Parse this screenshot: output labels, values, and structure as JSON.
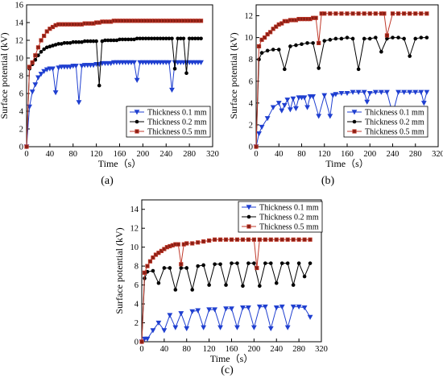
{
  "figure": {
    "panels": [
      "(a)",
      "(b)",
      "(c)"
    ]
  },
  "chart_data": [
    {
      "type": "line",
      "panel_label": "(a)",
      "xlabel": "Time（s）",
      "ylabel": "Surface potential (kV)",
      "xlim": [
        0,
        320
      ],
      "ylim": [
        0,
        16
      ],
      "xticks": [
        0,
        40,
        80,
        120,
        160,
        200,
        240,
        280,
        320
      ],
      "yticks": [
        0,
        2,
        4,
        6,
        8,
        10,
        12,
        14,
        16
      ],
      "legend_position": "bottom-right",
      "series": [
        {
          "name": "Thickness 0.1 mm",
          "color": "#1f3fd0",
          "marker": "triangle-down",
          "x": [
            0,
            5,
            10,
            15,
            20,
            25,
            30,
            35,
            40,
            45,
            50,
            55,
            60,
            65,
            70,
            75,
            80,
            85,
            90,
            95,
            100,
            105,
            110,
            115,
            120,
            125,
            130,
            135,
            140,
            145,
            150,
            155,
            160,
            165,
            170,
            175,
            180,
            185,
            190,
            195,
            200,
            205,
            210,
            215,
            220,
            225,
            230,
            235,
            240,
            245,
            250,
            255,
            260,
            265,
            270,
            275,
            280,
            285,
            290,
            295,
            300
          ],
          "values": [
            0,
            4.5,
            6.2,
            7.0,
            7.8,
            8.2,
            8.5,
            8.7,
            8.8,
            8.8,
            6.1,
            8.9,
            9.0,
            9.0,
            9.0,
            9.0,
            9.1,
            9.1,
            5.0,
            9.1,
            9.2,
            9.2,
            9.2,
            9.2,
            9.3,
            9.3,
            9.4,
            9.4,
            9.4,
            9.4,
            9.5,
            9.5,
            9.5,
            9.5,
            9.5,
            9.5,
            9.5,
            9.5,
            7.5,
            9.5,
            9.5,
            9.5,
            9.5,
            9.5,
            9.5,
            9.5,
            9.5,
            9.5,
            9.5,
            9.5,
            6.4,
            9.5,
            9.5,
            9.5,
            9.5,
            9.5,
            9.5,
            9.5,
            9.5,
            9.5,
            9.5
          ]
        },
        {
          "name": "Thickness 0.2 mm",
          "color": "#000000",
          "marker": "circle",
          "x": [
            0,
            5,
            10,
            15,
            20,
            25,
            30,
            35,
            40,
            45,
            50,
            55,
            60,
            65,
            70,
            75,
            80,
            85,
            90,
            95,
            100,
            105,
            110,
            115,
            120,
            125,
            130,
            135,
            140,
            145,
            150,
            155,
            160,
            165,
            170,
            175,
            180,
            185,
            190,
            195,
            200,
            205,
            210,
            215,
            220,
            225,
            230,
            235,
            240,
            245,
            250,
            255,
            260,
            265,
            270,
            275,
            280,
            285,
            290,
            295,
            300
          ],
          "values": [
            0,
            8.8,
            9.3,
            9.8,
            10.3,
            10.7,
            11.0,
            11.2,
            11.3,
            11.4,
            11.5,
            11.6,
            11.6,
            11.7,
            11.7,
            11.7,
            11.8,
            11.8,
            11.8,
            11.8,
            11.9,
            11.9,
            11.9,
            11.9,
            11.9,
            6.9,
            11.9,
            12.0,
            12.0,
            12.0,
            12.0,
            12.0,
            12.1,
            12.1,
            12.1,
            12.1,
            12.1,
            12.1,
            12.2,
            12.2,
            12.2,
            12.2,
            12.2,
            12.2,
            12.2,
            12.2,
            12.2,
            12.2,
            12.2,
            12.2,
            12.2,
            8.8,
            12.2,
            12.2,
            12.2,
            8.3,
            12.2,
            12.2,
            12.2,
            12.2,
            12.2
          ]
        },
        {
          "name": "Thickness 0.5 mm",
          "color": "#c0392b",
          "marker": "square",
          "x": [
            0,
            5,
            10,
            15,
            20,
            25,
            30,
            35,
            40,
            45,
            50,
            55,
            60,
            65,
            70,
            75,
            80,
            85,
            90,
            95,
            100,
            105,
            110,
            115,
            120,
            125,
            130,
            135,
            140,
            145,
            150,
            155,
            160,
            165,
            170,
            175,
            180,
            185,
            190,
            195,
            200,
            205,
            210,
            215,
            220,
            225,
            230,
            235,
            240,
            245,
            250,
            255,
            260,
            265,
            270,
            275,
            280,
            285,
            290,
            295,
            300
          ],
          "values": [
            0,
            9.0,
            9.5,
            10.3,
            11.2,
            12.0,
            12.5,
            13.0,
            13.3,
            13.5,
            13.7,
            13.8,
            13.8,
            13.8,
            13.8,
            13.8,
            13.8,
            13.8,
            13.8,
            13.8,
            13.9,
            13.9,
            13.9,
            13.9,
            14.0,
            14.0,
            14.1,
            14.1,
            14.1,
            14.1,
            14.2,
            14.2,
            14.2,
            14.2,
            14.2,
            14.2,
            14.2,
            14.2,
            14.2,
            14.2,
            14.2,
            14.2,
            14.2,
            14.2,
            14.2,
            14.2,
            14.2,
            14.2,
            14.2,
            14.2,
            14.2,
            14.2,
            14.2,
            14.2,
            14.2,
            14.2,
            14.2,
            14.2,
            14.2,
            14.2,
            14.2
          ]
        }
      ]
    },
    {
      "type": "line",
      "panel_label": "(b)",
      "xlabel": "Time（s）",
      "ylabel": "Surface potential (kV)",
      "xlim": [
        0,
        320
      ],
      "ylim": [
        0,
        13
      ],
      "xticks": [
        0,
        40,
        80,
        120,
        160,
        200,
        240,
        280,
        320
      ],
      "yticks": [
        0,
        2,
        4,
        6,
        8,
        10,
        12
      ],
      "legend_position": "bottom-right",
      "series": [
        {
          "name": "Thickness 0.1 mm",
          "color": "#1f3fd0",
          "marker": "triangle-down",
          "x": [
            0,
            5,
            10,
            20,
            30,
            40,
            45,
            50,
            55,
            60,
            65,
            70,
            75,
            80,
            85,
            90,
            95,
            100,
            110,
            120,
            130,
            135,
            140,
            150,
            160,
            170,
            180,
            190,
            195,
            200,
            210,
            220,
            230,
            240,
            250,
            260,
            270,
            280,
            290,
            295,
            300
          ],
          "values": [
            0,
            1.2,
            1.8,
            2.6,
            3.6,
            4.0,
            3.3,
            3.8,
            4.3,
            3.4,
            4.4,
            3.5,
            4.5,
            4.5,
            4.5,
            3.6,
            4.6,
            4.6,
            2.8,
            4.7,
            2.8,
            4.7,
            4.8,
            4.9,
            4.9,
            5.0,
            5.0,
            5.0,
            4.1,
            4.9,
            5.0,
            5.0,
            5.0,
            3.0,
            5.0,
            5.0,
            5.0,
            5.0,
            5.0,
            4.0,
            5.0
          ]
        },
        {
          "name": "Thickness 0.2 mm",
          "color": "#000000",
          "marker": "circle",
          "x": [
            0,
            5,
            10,
            20,
            30,
            40,
            50,
            60,
            70,
            80,
            90,
            100,
            110,
            120,
            130,
            140,
            150,
            160,
            170,
            180,
            190,
            200,
            210,
            220,
            230,
            240,
            250,
            260,
            270,
            280,
            290,
            300
          ],
          "values": [
            0,
            8.0,
            8.6,
            8.8,
            8.9,
            8.9,
            7.1,
            9.2,
            9.3,
            9.4,
            9.5,
            9.5,
            7.2,
            9.7,
            9.8,
            9.9,
            9.9,
            10.0,
            9.9,
            7.1,
            9.9,
            9.9,
            10.0,
            8.7,
            9.9,
            10.0,
            10.0,
            9.9,
            8.3,
            9.9,
            10.0,
            10.0
          ]
        },
        {
          "name": "Thickness 0.5 mm",
          "color": "#c0392b",
          "marker": "square",
          "x": [
            0,
            5,
            10,
            15,
            20,
            25,
            30,
            35,
            40,
            45,
            50,
            55,
            60,
            65,
            70,
            75,
            80,
            85,
            90,
            95,
            100,
            105,
            110,
            115,
            120,
            130,
            140,
            150,
            160,
            170,
            180,
            190,
            200,
            210,
            220,
            225,
            230,
            240,
            250,
            260,
            270,
            280,
            290,
            300
          ],
          "values": [
            0,
            9.2,
            9.8,
            10.0,
            10.3,
            10.5,
            10.8,
            11.0,
            11.2,
            11.3,
            11.5,
            11.5,
            11.6,
            11.6,
            11.6,
            11.7,
            11.7,
            11.7,
            11.7,
            11.7,
            11.8,
            11.8,
            9.5,
            12.2,
            12.2,
            12.2,
            12.2,
            12.2,
            12.2,
            12.2,
            12.2,
            12.2,
            12.2,
            12.2,
            12.2,
            12.2,
            10.2,
            12.2,
            12.2,
            12.2,
            12.2,
            12.2,
            12.2,
            12.2
          ]
        }
      ]
    },
    {
      "type": "line",
      "panel_label": "(c)",
      "xlabel": "Time（s）",
      "ylabel": "Surface potential (kV)",
      "xlim": [
        0,
        320
      ],
      "ylim": [
        0,
        15
      ],
      "xticks": [
        0,
        40,
        80,
        120,
        160,
        200,
        240,
        280,
        320
      ],
      "yticks": [
        0,
        2,
        4,
        6,
        8,
        10,
        12,
        14
      ],
      "legend_position": "top-right",
      "series": [
        {
          "name": "Thickness 0.1 mm",
          "color": "#1f3fd0",
          "marker": "triangle-down",
          "x": [
            0,
            5,
            10,
            20,
            30,
            40,
            50,
            60,
            70,
            80,
            90,
            100,
            110,
            120,
            130,
            140,
            150,
            160,
            170,
            180,
            190,
            200,
            210,
            220,
            230,
            240,
            250,
            260,
            270,
            280,
            290,
            300
          ],
          "values": [
            0,
            0.3,
            0.3,
            1.2,
            2.0,
            1.2,
            2.8,
            1.5,
            3.0,
            1.4,
            3.2,
            3.3,
            1.5,
            3.4,
            3.4,
            1.5,
            3.5,
            3.5,
            1.5,
            3.6,
            3.6,
            1.5,
            3.7,
            3.7,
            1.4,
            3.6,
            3.7,
            1.5,
            3.7,
            3.7,
            3.6,
            2.6
          ]
        },
        {
          "name": "Thickness 0.2 mm",
          "color": "#000000",
          "marker": "circle",
          "x": [
            0,
            5,
            10,
            20,
            30,
            40,
            50,
            60,
            70,
            80,
            90,
            100,
            110,
            120,
            130,
            140,
            150,
            160,
            170,
            180,
            190,
            200,
            210,
            220,
            230,
            240,
            250,
            260,
            270,
            280,
            290,
            300
          ],
          "values": [
            0,
            6.7,
            7.4,
            7.5,
            6.2,
            7.8,
            7.8,
            5.5,
            7.8,
            7.8,
            5.5,
            8.0,
            8.1,
            6.0,
            8.2,
            8.2,
            6.0,
            8.3,
            8.3,
            5.9,
            8.3,
            8.3,
            5.9,
            8.3,
            8.3,
            6.2,
            8.3,
            8.3,
            6.0,
            8.3,
            6.9,
            8.3
          ]
        },
        {
          "name": "Thickness 0.5 mm",
          "color": "#c0392b",
          "marker": "square",
          "x": [
            0,
            5,
            10,
            15,
            20,
            25,
            30,
            35,
            40,
            45,
            50,
            55,
            60,
            65,
            70,
            75,
            80,
            90,
            100,
            110,
            120,
            130,
            140,
            150,
            160,
            170,
            180,
            190,
            200,
            205,
            210,
            220,
            230,
            240,
            250,
            260,
            270,
            280,
            290,
            300
          ],
          "values": [
            0,
            7.3,
            8.0,
            8.5,
            8.9,
            9.2,
            9.4,
            9.6,
            9.8,
            10.0,
            10.1,
            10.2,
            10.3,
            10.3,
            8.2,
            10.3,
            10.4,
            10.4,
            10.5,
            10.6,
            10.7,
            10.8,
            10.8,
            10.8,
            10.8,
            10.8,
            10.8,
            10.8,
            10.8,
            7.8,
            10.8,
            10.8,
            10.8,
            10.8,
            10.8,
            10.8,
            10.8,
            10.8,
            10.8,
            10.8
          ]
        }
      ]
    }
  ]
}
